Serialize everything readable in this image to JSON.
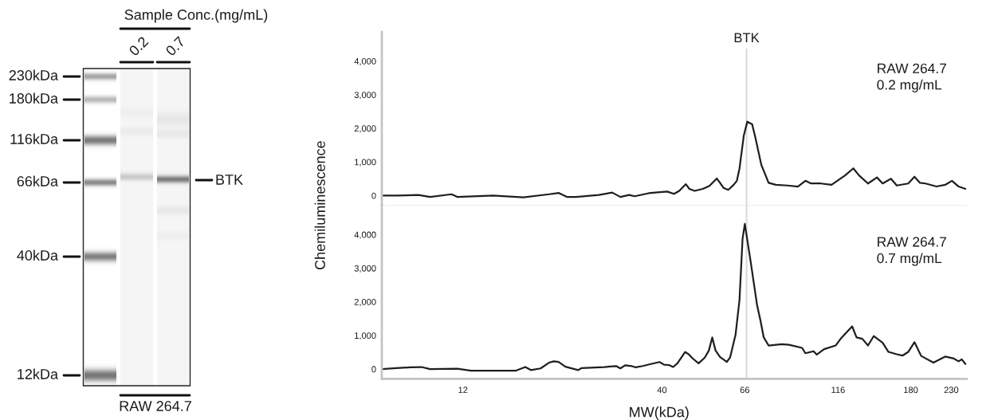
{
  "chart_data": [
    {
      "type": "other",
      "annotations": [
        "Sample Conc.(mg/mL)",
        "0.2",
        "0.7",
        "230kDa",
        "180kDa",
        "116kDa",
        "66kDa",
        "40kDa",
        "12kDa",
        "BTK",
        "RAW 264.7"
      ]
    },
    {
      "type": "line",
      "ylabel": "Chemiluminescence",
      "series": [
        {
          "color": "#1e1e1e",
          "x": [
            7.35,
            8.03,
            9.17,
            9.84,
            11.2,
            11.6,
            14.4,
            17.3,
            20.2,
            21.4,
            22.5,
            23.8,
            27.3,
            29.6,
            31.1,
            32.8,
            33.9,
            36.9,
            39.4,
            41.3,
            43.0,
            44.4,
            46.2,
            47.2,
            48.7,
            51.2,
            53.3,
            55.7,
            56.8,
            58.0,
            59.7,
            61.7,
            62.9,
            63.9,
            65.6,
            67.0,
            69.0,
            70.4,
            72.9,
            76.2,
            79.6,
            85.4,
            91.0,
            95.2,
            98.5,
            104.6,
            111.5,
            121.0,
            127.2,
            131.7,
            139.0,
            146.7,
            151.9,
            159.7,
            165.4,
            177.3,
            184.1,
            190.3,
            196.8,
            210.4,
            221.6,
            230.9,
            240.5,
            250.5
          ],
          "values": [
            0,
            0,
            20,
            -40,
            40,
            -40,
            0,
            -50,
            40,
            80,
            -40,
            -40,
            20,
            90,
            -40,
            20,
            -20,
            70,
            100,
            120,
            50,
            140,
            340,
            200,
            140,
            200,
            290,
            510,
            380,
            230,
            170,
            320,
            440,
            800,
            1790,
            2200,
            2120,
            1710,
            920,
            380,
            320,
            300,
            270,
            440,
            360,
            360,
            320,
            600,
            810,
            600,
            360,
            540,
            360,
            500,
            300,
            360,
            560,
            380,
            360,
            270,
            320,
            440,
            270,
            200
          ]
        }
      ],
      "log": "x",
      "xlim": [
        7.35,
        252.4
      ],
      "xticks": [
        12,
        40,
        66,
        116,
        180,
        230
      ],
      "ylim": [
        -290,
        4870
      ],
      "yticks": [
        0,
        {
          "value": 1000,
          "label": "1,000"
        },
        {
          "value": 2000,
          "label": "2,000"
        },
        {
          "value": 3000,
          "label": "3,000"
        },
        {
          "value": 4000,
          "label": "4,000"
        }
      ],
      "tick_labels": "y",
      "ref_lines": [
        {
          "axis": "x",
          "value": 66.7,
          "label": "BTK",
          "color": "#d9d9d9"
        }
      ],
      "annotations": [
        "RAW 264.7\n0.2 mg/mL"
      ]
    },
    {
      "type": "line",
      "xlabel": "MW(kDa)",
      "series": [
        {
          "color": "#1e1e1e",
          "x": [
            7.35,
            8.03,
            8.74,
            9.34,
            9.84,
            11.6,
            12.6,
            14.4,
            16.5,
            17.5,
            18.1,
            19.2,
            20.2,
            20.8,
            21.4,
            22.3,
            24.1,
            24.6,
            28.2,
            30.3,
            31.1,
            32.0,
            33.3,
            34.1,
            35.6,
            37.4,
            39.4,
            40.5,
            41.7,
            42.8,
            43.9,
            45.0,
            46.0,
            47.0,
            48.2,
            49.9,
            51.8,
            53.1,
            54.2,
            55.3,
            56.8,
            59.2,
            60.4,
            62.4,
            63.9,
            65.1,
            66.0,
            68.3,
            71.1,
            72.5,
            74.0,
            76.2,
            82.5,
            86.2,
            93.3,
            95.2,
            100.0,
            102.0,
            106.6,
            114.3,
            117.8,
            126.3,
            129.7,
            134.3,
            139.0,
            143.9,
            151.9,
            157.3,
            165.4,
            171.2,
            177.3,
            184.1,
            191.7,
            206.5,
            221.6,
            232.6,
            240.5,
            245.0,
            250.5
          ],
          "values": [
            0,
            30,
            50,
            60,
            0,
            10,
            -50,
            -50,
            -50,
            60,
            -30,
            20,
            190,
            230,
            210,
            70,
            -30,
            30,
            60,
            90,
            20,
            110,
            90,
            50,
            90,
            150,
            210,
            130,
            120,
            60,
            170,
            350,
            510,
            440,
            310,
            170,
            340,
            550,
            940,
            550,
            360,
            210,
            350,
            1020,
            2050,
            3870,
            4320,
            3230,
            1890,
            1460,
            940,
            700,
            740,
            720,
            630,
            470,
            530,
            430,
            590,
            700,
            900,
            1270,
            940,
            900,
            700,
            980,
            780,
            510,
            440,
            400,
            510,
            800,
            390,
            190,
            370,
            320,
            230,
            290,
            150
          ]
        }
      ],
      "log": "x",
      "xlim": [
        7.35,
        252.4
      ],
      "xticks": [
        12,
        40,
        66,
        116,
        180,
        230
      ],
      "ylim": [
        -290,
        4870
      ],
      "yticks": [
        0,
        {
          "value": 1000,
          "label": "1,000"
        },
        {
          "value": 2000,
          "label": "2,000"
        },
        {
          "value": 3000,
          "label": "3,000"
        },
        {
          "value": 4000,
          "label": "4,000"
        }
      ],
      "ref_lines": [
        {
          "axis": "x",
          "value": 66.7,
          "label": null,
          "color": "#d9d9d9"
        }
      ],
      "annotations": [
        "RAW 264.7\n0.7 mg/mL"
      ]
    }
  ]
}
